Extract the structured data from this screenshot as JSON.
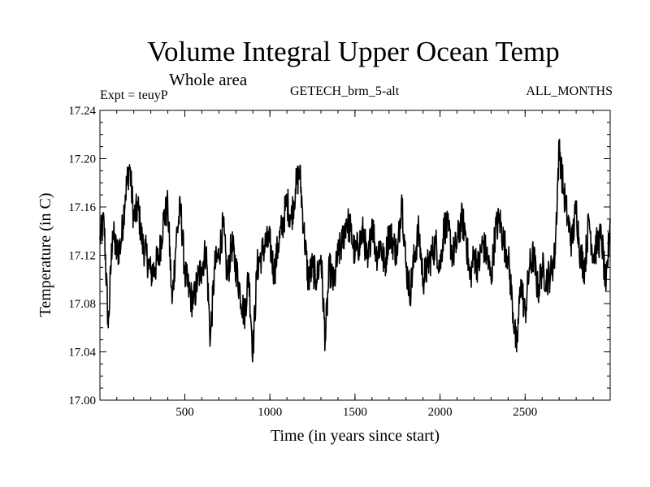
{
  "chart_data": {
    "type": "line",
    "title": "Volume Integral Upper Ocean Temp",
    "subtitle": "Whole area",
    "expt_label": "Expt = teuyP",
    "run_label": "GETECH_brm_5-alt",
    "months_label": "ALL_MONTHS",
    "xlabel": "Time (in years since start)",
    "ylabel": "Temperature (in C)",
    "xlim": [
      1,
      3000
    ],
    "ylim": [
      17.0,
      17.24
    ],
    "x_ticks": [
      500,
      1000,
      1500,
      2000,
      2500
    ],
    "x_tick_labels": [
      "500",
      "1000",
      "1500",
      "2000",
      "2500"
    ],
    "y_ticks": [
      17.0,
      17.04,
      17.08,
      17.12,
      17.16,
      17.2,
      17.24
    ],
    "y_tick_labels": [
      "17.00",
      "17.04",
      "17.08",
      "17.12",
      "17.16",
      "17.20",
      "17.24"
    ],
    "grid": false,
    "series": [
      {
        "color": "#000000",
        "x": [
          1,
          25,
          50,
          75,
          100,
          125,
          150,
          175,
          200,
          225,
          250,
          275,
          300,
          325,
          350,
          375,
          400,
          425,
          450,
          475,
          500,
          525,
          550,
          575,
          600,
          625,
          650,
          675,
          700,
          725,
          750,
          775,
          800,
          825,
          850,
          875,
          900,
          925,
          950,
          975,
          1000,
          1025,
          1050,
          1075,
          1100,
          1125,
          1150,
          1175,
          1200,
          1225,
          1250,
          1275,
          1300,
          1325,
          1350,
          1375,
          1400,
          1425,
          1450,
          1475,
          1500,
          1525,
          1550,
          1575,
          1600,
          1625,
          1650,
          1675,
          1700,
          1725,
          1750,
          1775,
          1800,
          1825,
          1850,
          1875,
          1900,
          1925,
          1950,
          1975,
          2000,
          2025,
          2050,
          2075,
          2100,
          2125,
          2150,
          2175,
          2200,
          2225,
          2250,
          2275,
          2300,
          2325,
          2350,
          2375,
          2400,
          2425,
          2450,
          2475,
          2500,
          2525,
          2550,
          2575,
          2600,
          2625,
          2650,
          2675,
          2700,
          2725,
          2750,
          2775,
          2800,
          2825,
          2850,
          2875,
          2900,
          2925,
          2950,
          2975,
          3000
        ],
        "y": [
          17.133,
          17.148,
          17.06,
          17.14,
          17.121,
          17.13,
          17.17,
          17.195,
          17.15,
          17.16,
          17.13,
          17.12,
          17.105,
          17.11,
          17.12,
          17.15,
          17.16,
          17.08,
          17.135,
          17.16,
          17.105,
          17.09,
          17.08,
          17.1,
          17.11,
          17.125,
          17.05,
          17.11,
          17.12,
          17.145,
          17.1,
          17.13,
          17.11,
          17.09,
          17.07,
          17.105,
          17.04,
          17.11,
          17.12,
          17.13,
          17.13,
          17.105,
          17.13,
          17.145,
          17.165,
          17.15,
          17.175,
          17.19,
          17.14,
          17.1,
          17.11,
          17.1,
          17.12,
          17.05,
          17.11,
          17.095,
          17.12,
          17.13,
          17.15,
          17.14,
          17.12,
          17.13,
          17.14,
          17.11,
          17.15,
          17.12,
          17.13,
          17.11,
          17.14,
          17.13,
          17.12,
          17.17,
          17.11,
          17.09,
          17.12,
          17.14,
          17.1,
          17.11,
          17.12,
          17.13,
          17.11,
          17.145,
          17.14,
          17.12,
          17.13,
          17.15,
          17.14,
          17.1,
          17.12,
          17.11,
          17.13,
          17.12,
          17.1,
          17.14,
          17.15,
          17.13,
          17.12,
          17.08,
          17.04,
          17.1,
          17.07,
          17.11,
          17.12,
          17.09,
          17.11,
          17.1,
          17.105,
          17.12,
          17.21,
          17.175,
          17.15,
          17.13,
          17.16,
          17.12,
          17.11,
          17.15,
          17.12,
          17.13,
          17.135,
          17.09,
          17.15
        ]
      }
    ]
  }
}
